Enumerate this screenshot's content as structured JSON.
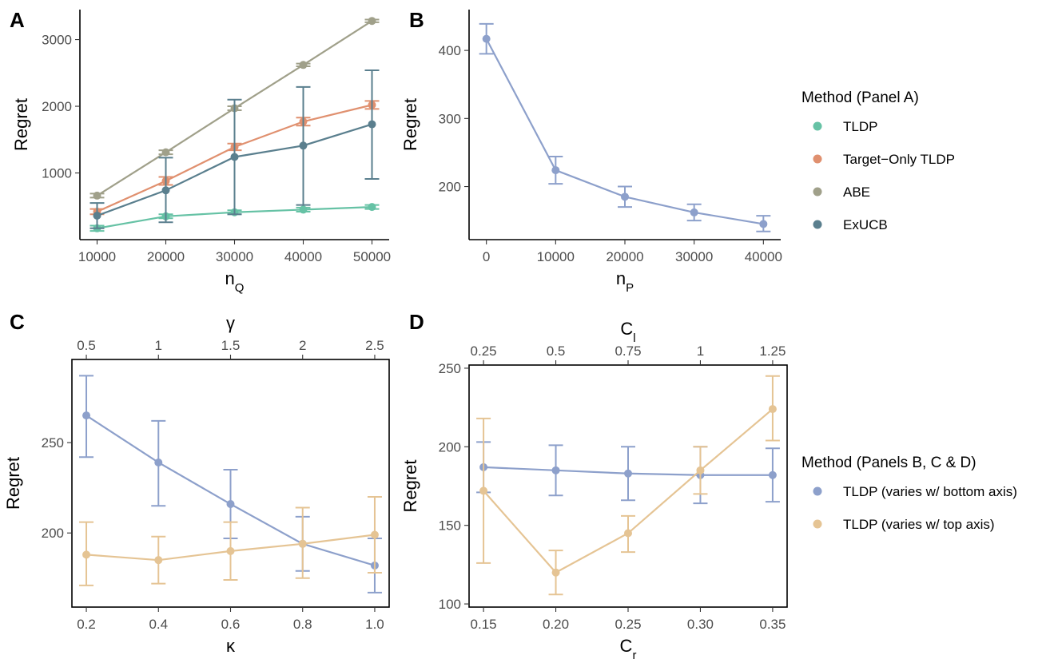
{
  "chart_data": [
    {
      "panel": "A",
      "type": "line",
      "xlabel": "n",
      "xlabel_sub": "Q",
      "ylabel": "Regret",
      "x": [
        10000,
        20000,
        30000,
        40000,
        50000
      ],
      "x_tick_labels": [
        "10000",
        "20000",
        "30000",
        "40000",
        "50000"
      ],
      "xlim": [
        7500,
        52500
      ],
      "ylim": [
        0,
        3450
      ],
      "y_ticks": [
        1000,
        2000,
        3000
      ],
      "y_tick_labels": [
        "1000",
        "2000",
        "3000"
      ],
      "series": [
        {
          "name": "TLDP",
          "color": "#66c2a5",
          "values": [
            170,
            350,
            410,
            450,
            490
          ],
          "err_lo": [
            130,
            320,
            380,
            420,
            460
          ],
          "err_hi": [
            210,
            380,
            440,
            480,
            520
          ]
        },
        {
          "name": "Target-Only TLDP",
          "color": "#e0906f",
          "values": [
            420,
            880,
            1390,
            1770,
            2020
          ],
          "err_lo": [
            380,
            820,
            1340,
            1710,
            1960
          ],
          "err_hi": [
            460,
            940,
            1440,
            1830,
            2080
          ]
        },
        {
          "name": "ABE",
          "color": "#a0a08a",
          "values": [
            660,
            1310,
            1970,
            2620,
            3280
          ],
          "err_lo": [
            630,
            1280,
            1940,
            2600,
            3260
          ],
          "err_hi": [
            690,
            1340,
            2000,
            2640,
            3300
          ]
        },
        {
          "name": "ExUCB",
          "color": "#5a7f8e",
          "values": [
            360,
            740,
            1240,
            1410,
            1730
          ],
          "err_lo": [
            170,
            260,
            380,
            520,
            910
          ],
          "err_hi": [
            550,
            1230,
            2100,
            2290,
            2540
          ]
        }
      ]
    },
    {
      "panel": "B",
      "type": "line",
      "xlabel": "n",
      "xlabel_sub": "P",
      "ylabel": "Regret",
      "x": [
        0,
        10000,
        20000,
        30000,
        40000
      ],
      "x_tick_labels": [
        "0",
        "10000",
        "20000",
        "30000",
        "40000"
      ],
      "xlim": [
        -2500,
        42500
      ],
      "ylim": [
        122,
        460
      ],
      "y_ticks": [
        200,
        300,
        400
      ],
      "y_tick_labels": [
        "200",
        "300",
        "400"
      ],
      "series": [
        {
          "name": "TLDP (varies w/ bottom axis)",
          "color": "#8da0cb",
          "values": [
            417,
            224,
            185,
            162,
            145
          ],
          "err_lo": [
            395,
            204,
            170,
            150,
            134
          ],
          "err_hi": [
            439,
            244,
            200,
            174,
            157
          ]
        }
      ]
    },
    {
      "panel": "C",
      "type": "line",
      "xlabel": "κ",
      "top_xlabel": "γ",
      "ylabel": "Regret",
      "x": [
        0.2,
        0.4,
        0.6,
        0.8,
        1.0
      ],
      "x_tick_labels": [
        "0.2",
        "0.4",
        "0.6",
        "0.8",
        "1.0"
      ],
      "top_tick_labels": [
        "0.5",
        "1",
        "1.5",
        "2",
        "2.5"
      ],
      "xlim": [
        0.16,
        1.04
      ],
      "ylim": [
        159,
        296
      ],
      "y_ticks": [
        200,
        250
      ],
      "y_tick_labels": [
        "200",
        "250"
      ],
      "series": [
        {
          "name": "TLDP (varies w/ bottom axis)",
          "color": "#8da0cb",
          "values": [
            265,
            239,
            216,
            194,
            182
          ],
          "err_lo": [
            242,
            215,
            197,
            179,
            167
          ],
          "err_hi": [
            287,
            262,
            235,
            209,
            197
          ]
        },
        {
          "name": "TLDP (varies w/ top axis)",
          "color": "#e5c494",
          "values": [
            188,
            185,
            190,
            194,
            199
          ],
          "err_lo": [
            171,
            172,
            174,
            175,
            178
          ],
          "err_hi": [
            206,
            198,
            206,
            214,
            220
          ]
        }
      ]
    },
    {
      "panel": "D",
      "type": "line",
      "xlabel": "C",
      "xlabel_sub": "r",
      "top_xlabel": "C",
      "top_xlabel_sub": "l",
      "ylabel": "Regret",
      "x": [
        0.15,
        0.2,
        0.25,
        0.3,
        0.35
      ],
      "x_tick_labels": [
        "0.15",
        "0.20",
        "0.25",
        "0.30",
        "0.35"
      ],
      "top_tick_labels": [
        "0.25",
        "0.5",
        "0.75",
        "1",
        "1.25"
      ],
      "xlim": [
        0.14,
        0.36
      ],
      "ylim": [
        98,
        252
      ],
      "y_ticks": [
        100,
        150,
        200,
        250
      ],
      "y_tick_labels": [
        "100",
        "150",
        "200",
        "250"
      ],
      "series": [
        {
          "name": "TLDP (varies w/ bottom axis)",
          "color": "#8da0cb",
          "values": [
            187,
            185,
            183,
            182,
            182
          ],
          "err_lo": [
            171,
            169,
            166,
            164,
            165
          ],
          "err_hi": [
            203,
            201,
            200,
            200,
            199
          ]
        },
        {
          "name": "TLDP (varies w/ top axis)",
          "color": "#e5c494",
          "values": [
            172,
            120,
            145,
            185,
            224
          ],
          "err_lo": [
            126,
            106,
            133,
            170,
            204
          ],
          "err_hi": [
            218,
            134,
            156,
            200,
            245
          ]
        }
      ]
    }
  ],
  "legends": [
    {
      "title": "Method (Panel A)",
      "items": [
        {
          "label": "TLDP",
          "color": "#66c2a5"
        },
        {
          "label": "Target−Only TLDP",
          "color": "#e0906f"
        },
        {
          "label": "ABE",
          "color": "#a0a08a"
        },
        {
          "label": "ExUCB",
          "color": "#5a7f8e"
        }
      ]
    },
    {
      "title": "Method (Panels B, C & D)",
      "items": [
        {
          "label": "TLDP (varies w/ bottom axis)",
          "color": "#8da0cb"
        },
        {
          "label": "TLDP (varies w/ top axis)",
          "color": "#e5c494"
        }
      ]
    }
  ]
}
